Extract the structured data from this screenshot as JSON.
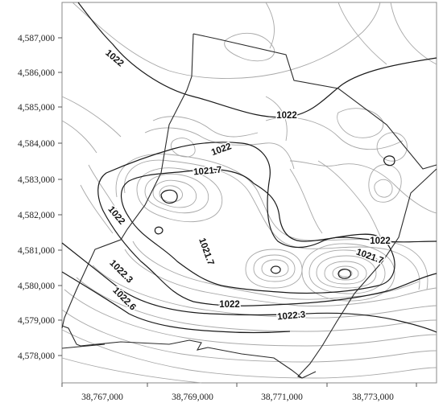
{
  "map": {
    "y_ticks": [
      "4,587,000",
      "4,586,000",
      "4,585,000",
      "4,584,000",
      "4,583,000",
      "4,582,000",
      "4,581,000",
      "4,580,000",
      "4,579,000",
      "4,578,000"
    ],
    "x_ticks": [
      "38,767,000",
      "38,769,000",
      "38,771,000",
      "38,773,000"
    ],
    "contour_labels": [
      "1022",
      "1022",
      "1022",
      "1021.7",
      "1022",
      "1021.7",
      "1022",
      "1021.7",
      "1022.3",
      "1022.6",
      "1022",
      "1022.3"
    ],
    "colors": {
      "major_contour": "#1a1a1a",
      "minor_contour": "#a8a8a8",
      "boundary": "#2a2a2a",
      "frame": "#888888"
    }
  }
}
